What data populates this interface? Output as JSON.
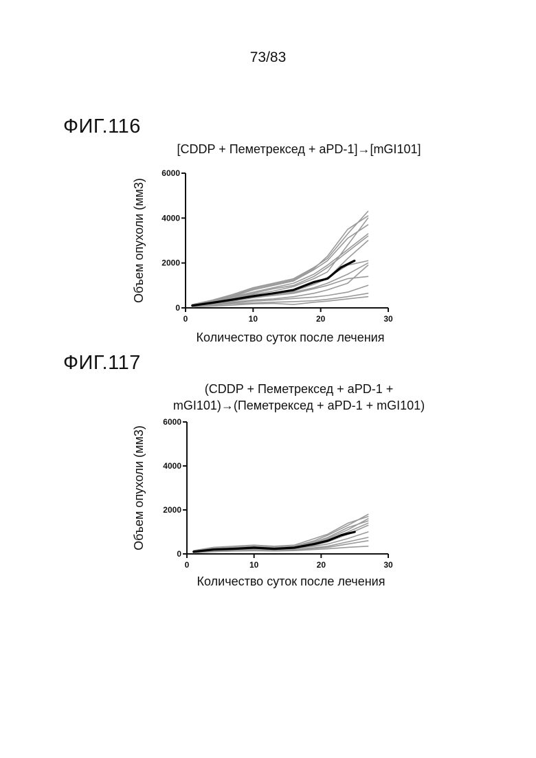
{
  "page": {
    "number": "73/83"
  },
  "figures": [
    {
      "label": "ФИГ.116"
    },
    {
      "label": "ФИГ.117"
    }
  ],
  "chart_data": [
    {
      "type": "line",
      "title_lines": [
        "[CDDP + Пеметрексед + aPD-1]→[mGI101]"
      ],
      "xlabel": "Количество суток после лечения",
      "ylabel": "Объем опухоли (мм3)",
      "xlim": [
        0,
        30
      ],
      "ylim": [
        0,
        6000
      ],
      "xticks": [
        "0",
        "10",
        "20",
        "30"
      ],
      "yticks": [
        "0",
        "2000",
        "4000",
        "6000"
      ],
      "individual_color": "#9a9a9a",
      "mean_color": "#000000",
      "individual_series": [
        [
          [
            1,
            100
          ],
          [
            4,
            250
          ],
          [
            7,
            400
          ],
          [
            10,
            500
          ],
          [
            13,
            600
          ],
          [
            16,
            700
          ],
          [
            19,
            900
          ],
          [
            21,
            1100
          ],
          [
            24,
            1500
          ],
          [
            27,
            2000
          ]
        ],
        [
          [
            1,
            80
          ],
          [
            4,
            200
          ],
          [
            7,
            300
          ],
          [
            10,
            450
          ],
          [
            13,
            550
          ],
          [
            16,
            650
          ],
          [
            19,
            850
          ],
          [
            21,
            1000
          ],
          [
            24,
            1300
          ],
          [
            27,
            1400
          ]
        ],
        [
          [
            1,
            120
          ],
          [
            4,
            300
          ],
          [
            7,
            500
          ],
          [
            10,
            700
          ],
          [
            13,
            900
          ],
          [
            16,
            1100
          ],
          [
            19,
            1500
          ],
          [
            21,
            1900
          ],
          [
            24,
            2600
          ],
          [
            27,
            3300
          ]
        ],
        [
          [
            1,
            90
          ],
          [
            4,
            180
          ],
          [
            7,
            250
          ],
          [
            10,
            350
          ],
          [
            13,
            400
          ],
          [
            16,
            500
          ],
          [
            19,
            650
          ],
          [
            21,
            800
          ],
          [
            24,
            1100
          ],
          [
            27,
            1900
          ]
        ],
        [
          [
            1,
            150
          ],
          [
            4,
            350
          ],
          [
            7,
            600
          ],
          [
            10,
            900
          ],
          [
            13,
            1100
          ],
          [
            16,
            1300
          ],
          [
            19,
            1800
          ],
          [
            21,
            2200
          ],
          [
            24,
            3300
          ],
          [
            27,
            4300
          ]
        ],
        [
          [
            1,
            110
          ],
          [
            4,
            280
          ],
          [
            7,
            450
          ],
          [
            10,
            650
          ],
          [
            13,
            850
          ],
          [
            16,
            1000
          ],
          [
            19,
            1400
          ],
          [
            21,
            1800
          ],
          [
            24,
            2500
          ],
          [
            27,
            3200
          ]
        ],
        [
          [
            1,
            100
          ],
          [
            4,
            250
          ],
          [
            7,
            400
          ],
          [
            10,
            600
          ],
          [
            13,
            750
          ],
          [
            16,
            950
          ],
          [
            19,
            1300
          ],
          [
            21,
            1600
          ],
          [
            24,
            2800
          ],
          [
            27,
            4000
          ]
        ],
        [
          [
            1,
            130
          ],
          [
            4,
            320
          ],
          [
            7,
            520
          ],
          [
            10,
            800
          ],
          [
            13,
            1000
          ],
          [
            16,
            1200
          ],
          [
            19,
            1700
          ],
          [
            21,
            2100
          ],
          [
            24,
            3100
          ],
          [
            27,
            3700
          ]
        ],
        [
          [
            1,
            70
          ],
          [
            4,
            150
          ],
          [
            7,
            220
          ],
          [
            10,
            300
          ],
          [
            13,
            350
          ],
          [
            16,
            420
          ],
          [
            19,
            480
          ],
          [
            21,
            550
          ],
          [
            24,
            700
          ],
          [
            27,
            1000
          ]
        ],
        [
          [
            1,
            60
          ],
          [
            4,
            120
          ],
          [
            7,
            180
          ],
          [
            10,
            220
          ],
          [
            13,
            250
          ],
          [
            16,
            280
          ],
          [
            19,
            320
          ],
          [
            21,
            380
          ],
          [
            24,
            500
          ],
          [
            27,
            650
          ]
        ],
        [
          [
            1,
            100
          ],
          [
            4,
            220
          ],
          [
            7,
            350
          ],
          [
            10,
            500
          ],
          [
            13,
            650
          ],
          [
            16,
            800
          ],
          [
            19,
            1100
          ],
          [
            21,
            1350
          ],
          [
            24,
            1900
          ],
          [
            27,
            2100
          ]
        ],
        [
          [
            1,
            140
          ],
          [
            4,
            330
          ],
          [
            7,
            550
          ],
          [
            10,
            850
          ],
          [
            13,
            1050
          ],
          [
            16,
            1250
          ],
          [
            19,
            1750
          ],
          [
            21,
            2300
          ],
          [
            24,
            3500
          ],
          [
            27,
            4100
          ]
        ],
        [
          [
            1,
            90
          ],
          [
            4,
            200
          ],
          [
            7,
            330
          ],
          [
            10,
            480
          ],
          [
            13,
            600
          ],
          [
            16,
            750
          ],
          [
            19,
            1050
          ],
          [
            21,
            1300
          ],
          [
            24,
            2200
          ],
          [
            27,
            3000
          ]
        ],
        [
          [
            1,
            50
          ],
          [
            4,
            80
          ],
          [
            7,
            120
          ],
          [
            10,
            180
          ],
          [
            13,
            200
          ],
          [
            16,
            150
          ],
          [
            19,
            250
          ],
          [
            21,
            300
          ],
          [
            24,
            400
          ],
          [
            27,
            500
          ]
        ]
      ],
      "mean_series": [
        [
          1,
          100
        ],
        [
          4,
          230
        ],
        [
          7,
          370
        ],
        [
          10,
          520
        ],
        [
          13,
          650
        ],
        [
          16,
          800
        ],
        [
          19,
          1150
        ],
        [
          21,
          1300
        ],
        [
          23,
          1800
        ],
        [
          25,
          2100
        ]
      ]
    },
    {
      "type": "line",
      "title_lines": [
        "(CDDP + Пеметрексед + aPD-1 +",
        "mGI101)→(Пеметрексед + aPD-1 + mGI101)"
      ],
      "xlabel": "Количество суток после лечения",
      "ylabel": "Объем опухоли (мм3)",
      "xlim": [
        0,
        30
      ],
      "ylim": [
        0,
        6000
      ],
      "xticks": [
        "0",
        "10",
        "20",
        "30"
      ],
      "yticks": [
        "0",
        "2000",
        "4000",
        "6000"
      ],
      "individual_color": "#9a9a9a",
      "mean_color": "#000000",
      "individual_series": [
        [
          [
            1,
            100
          ],
          [
            4,
            200
          ],
          [
            7,
            250
          ],
          [
            10,
            280
          ],
          [
            13,
            250
          ],
          [
            16,
            300
          ],
          [
            19,
            500
          ],
          [
            21,
            700
          ],
          [
            24,
            1100
          ],
          [
            27,
            1600
          ]
        ],
        [
          [
            1,
            120
          ],
          [
            4,
            250
          ],
          [
            7,
            300
          ],
          [
            10,
            350
          ],
          [
            13,
            300
          ],
          [
            16,
            350
          ],
          [
            19,
            600
          ],
          [
            21,
            850
          ],
          [
            24,
            1300
          ],
          [
            27,
            1800
          ]
        ],
        [
          [
            1,
            80
          ],
          [
            4,
            180
          ],
          [
            7,
            200
          ],
          [
            10,
            220
          ],
          [
            13,
            200
          ],
          [
            16,
            250
          ],
          [
            19,
            350
          ],
          [
            21,
            450
          ],
          [
            24,
            700
          ],
          [
            27,
            1000
          ]
        ],
        [
          [
            1,
            150
          ],
          [
            4,
            300
          ],
          [
            7,
            350
          ],
          [
            10,
            400
          ],
          [
            13,
            350
          ],
          [
            16,
            400
          ],
          [
            19,
            700
          ],
          [
            21,
            900
          ],
          [
            24,
            1400
          ],
          [
            27,
            1700
          ]
        ],
        [
          [
            1,
            60
          ],
          [
            4,
            120
          ],
          [
            7,
            150
          ],
          [
            10,
            160
          ],
          [
            13,
            150
          ],
          [
            16,
            180
          ],
          [
            19,
            250
          ],
          [
            21,
            300
          ],
          [
            24,
            450
          ],
          [
            27,
            600
          ]
        ],
        [
          [
            1,
            100
          ],
          [
            4,
            220
          ],
          [
            7,
            280
          ],
          [
            10,
            300
          ],
          [
            13,
            280
          ],
          [
            16,
            320
          ],
          [
            19,
            550
          ],
          [
            21,
            750
          ],
          [
            24,
            1200
          ],
          [
            27,
            1500
          ]
        ],
        [
          [
            1,
            90
          ],
          [
            4,
            200
          ],
          [
            7,
            230
          ],
          [
            10,
            250
          ],
          [
            13,
            230
          ],
          [
            16,
            280
          ],
          [
            19,
            400
          ],
          [
            21,
            550
          ],
          [
            24,
            900
          ],
          [
            27,
            1300
          ]
        ],
        [
          [
            1,
            70
          ],
          [
            4,
            150
          ],
          [
            7,
            180
          ],
          [
            10,
            200
          ],
          [
            13,
            180
          ],
          [
            16,
            200
          ],
          [
            19,
            280
          ],
          [
            21,
            350
          ],
          [
            24,
            550
          ],
          [
            27,
            750
          ]
        ],
        [
          [
            1,
            110
          ],
          [
            4,
            230
          ],
          [
            7,
            260
          ],
          [
            10,
            300
          ],
          [
            13,
            270
          ],
          [
            16,
            310
          ],
          [
            19,
            480
          ],
          [
            21,
            650
          ],
          [
            24,
            1000
          ],
          [
            27,
            1400
          ]
        ],
        [
          [
            1,
            50
          ],
          [
            4,
            100
          ],
          [
            7,
            130
          ],
          [
            10,
            140
          ],
          [
            13,
            130
          ],
          [
            16,
            150
          ],
          [
            19,
            200
          ],
          [
            21,
            230
          ],
          [
            24,
            300
          ],
          [
            27,
            350
          ]
        ]
      ],
      "mean_series": [
        [
          1,
          100
        ],
        [
          4,
          200
        ],
        [
          7,
          230
        ],
        [
          10,
          280
        ],
        [
          13,
          230
        ],
        [
          16,
          280
        ],
        [
          19,
          450
        ],
        [
          21,
          600
        ],
        [
          23,
          850
        ],
        [
          25,
          1000
        ]
      ]
    }
  ]
}
